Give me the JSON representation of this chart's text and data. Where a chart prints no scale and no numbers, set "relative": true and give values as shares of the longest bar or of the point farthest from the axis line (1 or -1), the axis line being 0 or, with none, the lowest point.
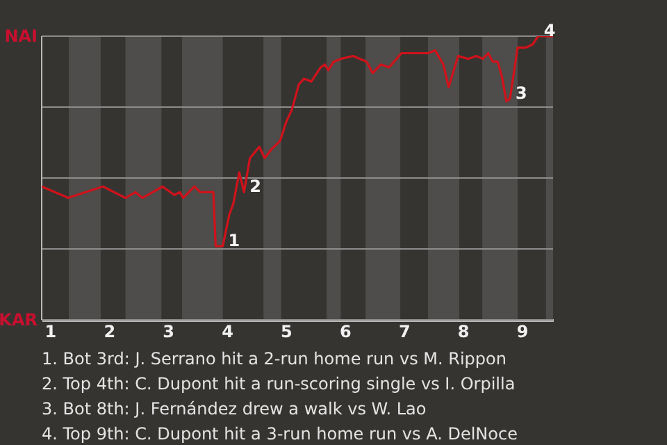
{
  "chart_data": {
    "type": "line",
    "relative": true,
    "x": [
      0.86,
      1.31,
      1.9,
      2.28,
      2.45,
      2.57,
      2.91,
      3.11,
      3.2,
      3.26,
      3.45,
      3.55,
      3.77,
      3.81,
      3.93,
      4.04,
      4.11,
      4.21,
      4.29,
      4.39,
      4.55,
      4.64,
      4.75,
      4.9,
      5.01,
      5.1,
      5.22,
      5.31,
      5.43,
      5.59,
      5.66,
      5.72,
      5.81,
      5.93,
      6.14,
      6.37,
      6.47,
      6.61,
      6.75,
      6.96,
      7.13,
      7.41,
      7.53,
      7.67,
      7.76,
      7.92,
      8.09,
      8.23,
      8.34,
      8.43,
      8.51,
      8.59,
      8.66,
      8.74,
      8.8,
      8.93,
      9.07,
      9.18,
      9.28,
      9.53
    ],
    "series": [
      {
        "color": "#d0121b",
        "values": [
          0.47,
          0.43,
          0.47,
          0.43,
          0.45,
          0.43,
          0.47,
          0.44,
          0.45,
          0.43,
          0.47,
          0.45,
          0.45,
          0.26,
          0.26,
          0.37,
          0.41,
          0.52,
          0.45,
          0.57,
          0.61,
          0.57,
          0.6,
          0.63,
          0.7,
          0.74,
          0.83,
          0.85,
          0.84,
          0.89,
          0.9,
          0.88,
          0.91,
          0.92,
          0.93,
          0.91,
          0.87,
          0.9,
          0.89,
          0.94,
          0.94,
          0.94,
          0.95,
          0.9,
          0.82,
          0.93,
          0.92,
          0.93,
          0.92,
          0.94,
          0.91,
          0.91,
          0.86,
          0.77,
          0.78,
          0.96,
          0.96,
          0.97,
          1,
          1
        ]
      }
    ],
    "xlim": [
      0.86,
      9.53
    ],
    "xticks": [
      1,
      2,
      3,
      4,
      5,
      6,
      7,
      8,
      9
    ],
    "grid": "y",
    "marker": "none",
    "line_style": "solid",
    "bands": [
      {
        "axis": "x",
        "from": 1.32,
        "to": 1.86,
        "color": "#4e4d4b"
      },
      {
        "axis": "x",
        "from": 2.28,
        "to": 2.89,
        "color": "#4e4d4b"
      },
      {
        "axis": "x",
        "from": 3.24,
        "to": 3.93,
        "color": "#4e4d4b"
      },
      {
        "axis": "x",
        "from": 4.62,
        "to": 4.92,
        "color": "#4e4d4b"
      },
      {
        "axis": "x",
        "from": 5.69,
        "to": 5.93,
        "color": "#4e4d4b"
      },
      {
        "axis": "x",
        "from": 6.35,
        "to": 6.94,
        "color": "#4e4d4b"
      },
      {
        "axis": "x",
        "from": 7.41,
        "to": 7.94,
        "color": "#4e4d4b"
      },
      {
        "axis": "x",
        "from": 8.33,
        "to": 8.93,
        "color": "#4e4d4b"
      },
      {
        "axis": "x",
        "from": 9.41,
        "to": 9.53,
        "color": "#4e4d4b"
      }
    ],
    "annotations": [
      "NAI",
      "KAR",
      {
        "text": "1",
        "x": 3.93,
        "y": 0.26
      },
      {
        "text": "2",
        "x": 4.29,
        "y": 0.45
      },
      {
        "text": "3",
        "x": 8.8,
        "y": 0.78
      },
      {
        "text": "4",
        "x": 9.28,
        "y": 1
      },
      "1. Bot 3rd: J. Serrano hit a 2-run home run vs M. Rippon",
      "2. Top 4th: C. Dupont hit a run-scoring single vs I. Orpilla",
      "3. Bot 8th: J. Fernández drew a walk vs W. Lao",
      "4. Top 9th: C. Dupont hit a 3-run home run vs A. DelNoce"
    ]
  }
}
